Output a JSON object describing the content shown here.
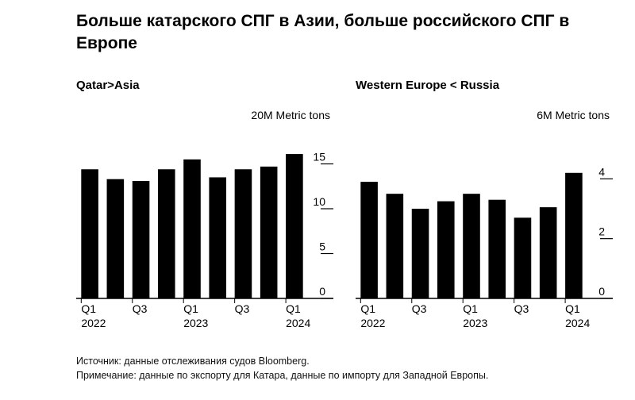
{
  "title": "Больше катарского СПГ в Азии, больше российского СПГ в Европе",
  "footer": {
    "source": "Источник: данные отслеживания судов Bloomberg.",
    "note": "Примечание: данные по экспорту для Катара, данные по импорту для Западной Европы."
  },
  "chart_data": [
    {
      "type": "bar",
      "title": "Qatar>Asia",
      "unit_label": "20M Metric tons",
      "categories": [
        "Q1 2022",
        "Q2 2022",
        "Q3 2022",
        "Q4 2022",
        "Q1 2023",
        "Q2 2023",
        "Q3 2023",
        "Q4 2023",
        "Q1 2024"
      ],
      "values": [
        14.4,
        13.3,
        13.1,
        14.4,
        15.5,
        13.5,
        14.4,
        14.7,
        16.1
      ],
      "ylim": [
        0,
        20
      ],
      "yticks": [
        0,
        5,
        10,
        15
      ],
      "xtick_labels": [
        {
          "index": 0,
          "top": "Q1",
          "bottom": "2022"
        },
        {
          "index": 2,
          "top": "Q3",
          "bottom": ""
        },
        {
          "index": 4,
          "top": "Q1",
          "bottom": "2023"
        },
        {
          "index": 6,
          "top": "Q3",
          "bottom": ""
        },
        {
          "index": 8,
          "top": "Q1",
          "bottom": "2024"
        }
      ],
      "bar_color": "#000000",
      "grid": false
    },
    {
      "type": "bar",
      "title": "Western Europe < Russia",
      "unit_label": "6M Metric tons",
      "categories": [
        "Q1 2022",
        "Q2 2022",
        "Q3 2022",
        "Q4 2022",
        "Q1 2023",
        "Q2 2023",
        "Q3 2023",
        "Q4 2023",
        "Q1 2024"
      ],
      "values": [
        3.9,
        3.5,
        3.0,
        3.25,
        3.5,
        3.3,
        2.7,
        3.05,
        4.2
      ],
      "ylim": [
        0,
        6
      ],
      "yticks": [
        0,
        2,
        4
      ],
      "xtick_labels": [
        {
          "index": 0,
          "top": "Q1",
          "bottom": "2022"
        },
        {
          "index": 2,
          "top": "Q3",
          "bottom": ""
        },
        {
          "index": 4,
          "top": "Q1",
          "bottom": "2023"
        },
        {
          "index": 6,
          "top": "Q3",
          "bottom": ""
        },
        {
          "index": 8,
          "top": "Q1",
          "bottom": "2024"
        }
      ],
      "bar_color": "#000000",
      "grid": false
    }
  ]
}
